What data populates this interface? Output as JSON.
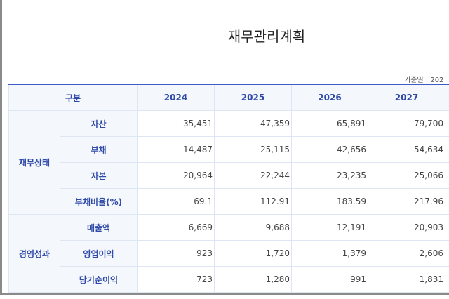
{
  "title": "재무관리계획",
  "date_label": "기준일 : 202",
  "header": {
    "category": "구분",
    "years": [
      "2024",
      "2025",
      "2026",
      "2027"
    ]
  },
  "groups": [
    {
      "name": "재무상태",
      "rows": [
        {
          "label": "자산",
          "values": [
            "35,451",
            "47,359",
            "65,891",
            "79,700"
          ]
        },
        {
          "label": "부채",
          "values": [
            "14,487",
            "25,115",
            "42,656",
            "54,634"
          ]
        },
        {
          "label": "자본",
          "values": [
            "20,964",
            "22,244",
            "23,235",
            "25,066"
          ]
        },
        {
          "label": "부채비율(%)",
          "values": [
            "69.1",
            "112.91",
            "183.59",
            "217.96"
          ]
        }
      ]
    },
    {
      "name": "경영성과",
      "rows": [
        {
          "label": "매출액",
          "values": [
            "6,669",
            "9,688",
            "12,191",
            "20,903"
          ]
        },
        {
          "label": "영업이익",
          "values": [
            "923",
            "1,720",
            "1,379",
            "2,606"
          ]
        },
        {
          "label": "당기순이익",
          "values": [
            "723",
            "1,280",
            "991",
            "1,831"
          ]
        }
      ]
    }
  ]
}
